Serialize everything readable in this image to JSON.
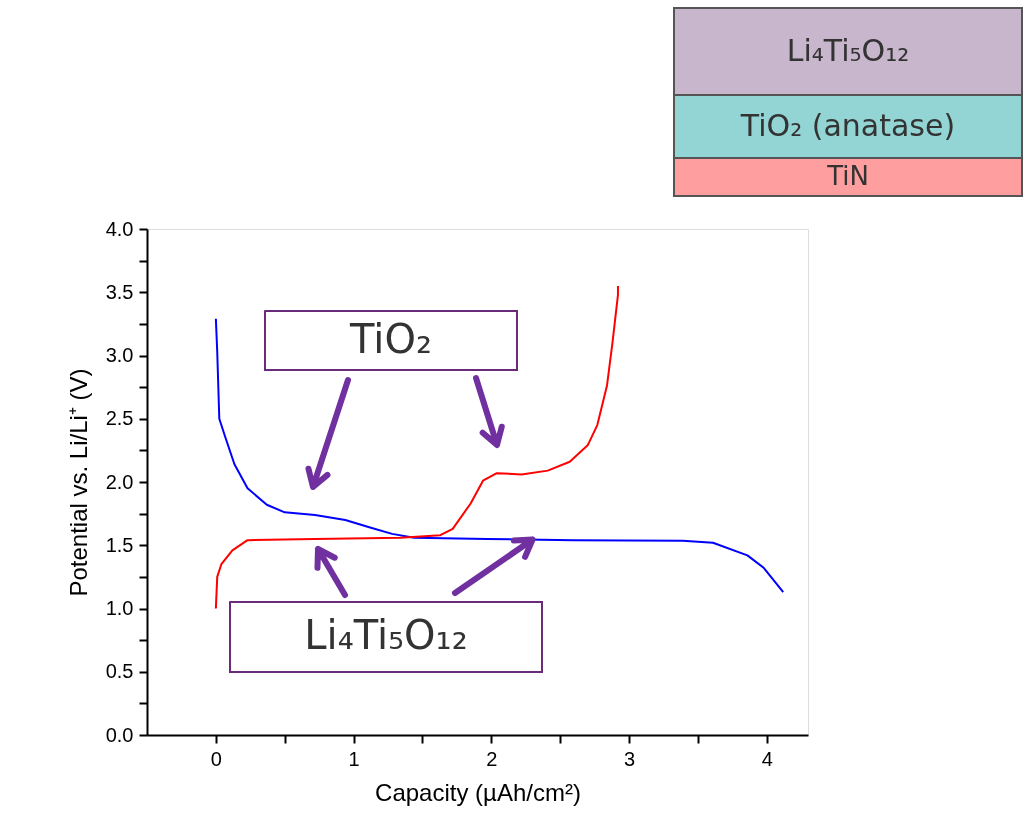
{
  "chart_data": {
    "type": "line",
    "xlabel": "Capacity (µAh/cm²)",
    "ylabel": "Potential vs. Li/Li⁺ (V)",
    "xlim": [
      -0.5,
      4.3
    ],
    "ylim": [
      0,
      4
    ],
    "xticks": [
      0,
      {
        "value": 0.5,
        "label": null
      },
      1,
      {
        "value": 1.5,
        "label": null
      },
      2,
      {
        "value": 2.5,
        "label": null
      },
      3,
      {
        "value": 3.5,
        "label": null
      },
      4
    ],
    "yticks": [
      {
        "value": 0,
        "label": "0.0"
      },
      {
        "value": 0.25,
        "label": null
      },
      0.5,
      {
        "value": 0.75,
        "label": null
      },
      {
        "value": 1,
        "label": "1.0"
      },
      {
        "value": 1.25,
        "label": null
      },
      1.5,
      {
        "value": 1.75,
        "label": null
      },
      {
        "value": 2,
        "label": "2.0"
      },
      {
        "value": 2.25,
        "label": null
      },
      2.5,
      {
        "value": 2.75,
        "label": null
      },
      {
        "value": 3,
        "label": "3.0"
      },
      {
        "value": 3.25,
        "label": null
      },
      3.5,
      {
        "value": 3.75,
        "label": null
      },
      {
        "value": 4,
        "label": "4.0"
      }
    ],
    "grid": false,
    "legend": false,
    "line_style": "solid",
    "annotations": [
      "Li₄Ti₅O₁₂",
      "TiO₂ (anatase)",
      "TiN",
      "TiO₂",
      {
        "text": "Li₄Ti₅O₁₂",
        "x": 2.3,
        "y": 1.545
      }
    ],
    "series": [
      {
        "color": "#0000ff",
        "x": [
          0,
          0.01,
          0.025,
          0.07,
          0.135,
          0.23,
          0.37,
          0.5,
          0.72,
          0.94,
          1.12,
          1.28,
          1.44,
          1.97,
          2.6,
          3.39,
          3.61,
          3.86,
          3.98,
          4.12
        ],
        "values": [
          3.29,
          3.03,
          2.5,
          2.35,
          2.14,
          1.95,
          1.82,
          1.76,
          1.74,
          1.7,
          1.64,
          1.59,
          1.56,
          1.55,
          1.54,
          1.535,
          1.52,
          1.42,
          1.32,
          1.13
        ]
      },
      {
        "color": "#ff0000",
        "x": [
          0,
          0.01,
          0.04,
          0.12,
          0.23,
          0.72,
          1.34,
          1.63,
          1.72,
          1.85,
          1.94,
          2.04,
          2.22,
          2.41,
          2.57,
          2.7,
          2.77,
          2.84,
          2.88,
          2.92,
          2.92
        ],
        "values": [
          1.0,
          1.25,
          1.35,
          1.46,
          1.54,
          1.55,
          1.56,
          1.58,
          1.63,
          1.83,
          2.01,
          2.07,
          2.06,
          2.09,
          2.16,
          2.29,
          2.45,
          2.76,
          3.1,
          3.48,
          3.55
        ]
      }
    ]
  }
}
